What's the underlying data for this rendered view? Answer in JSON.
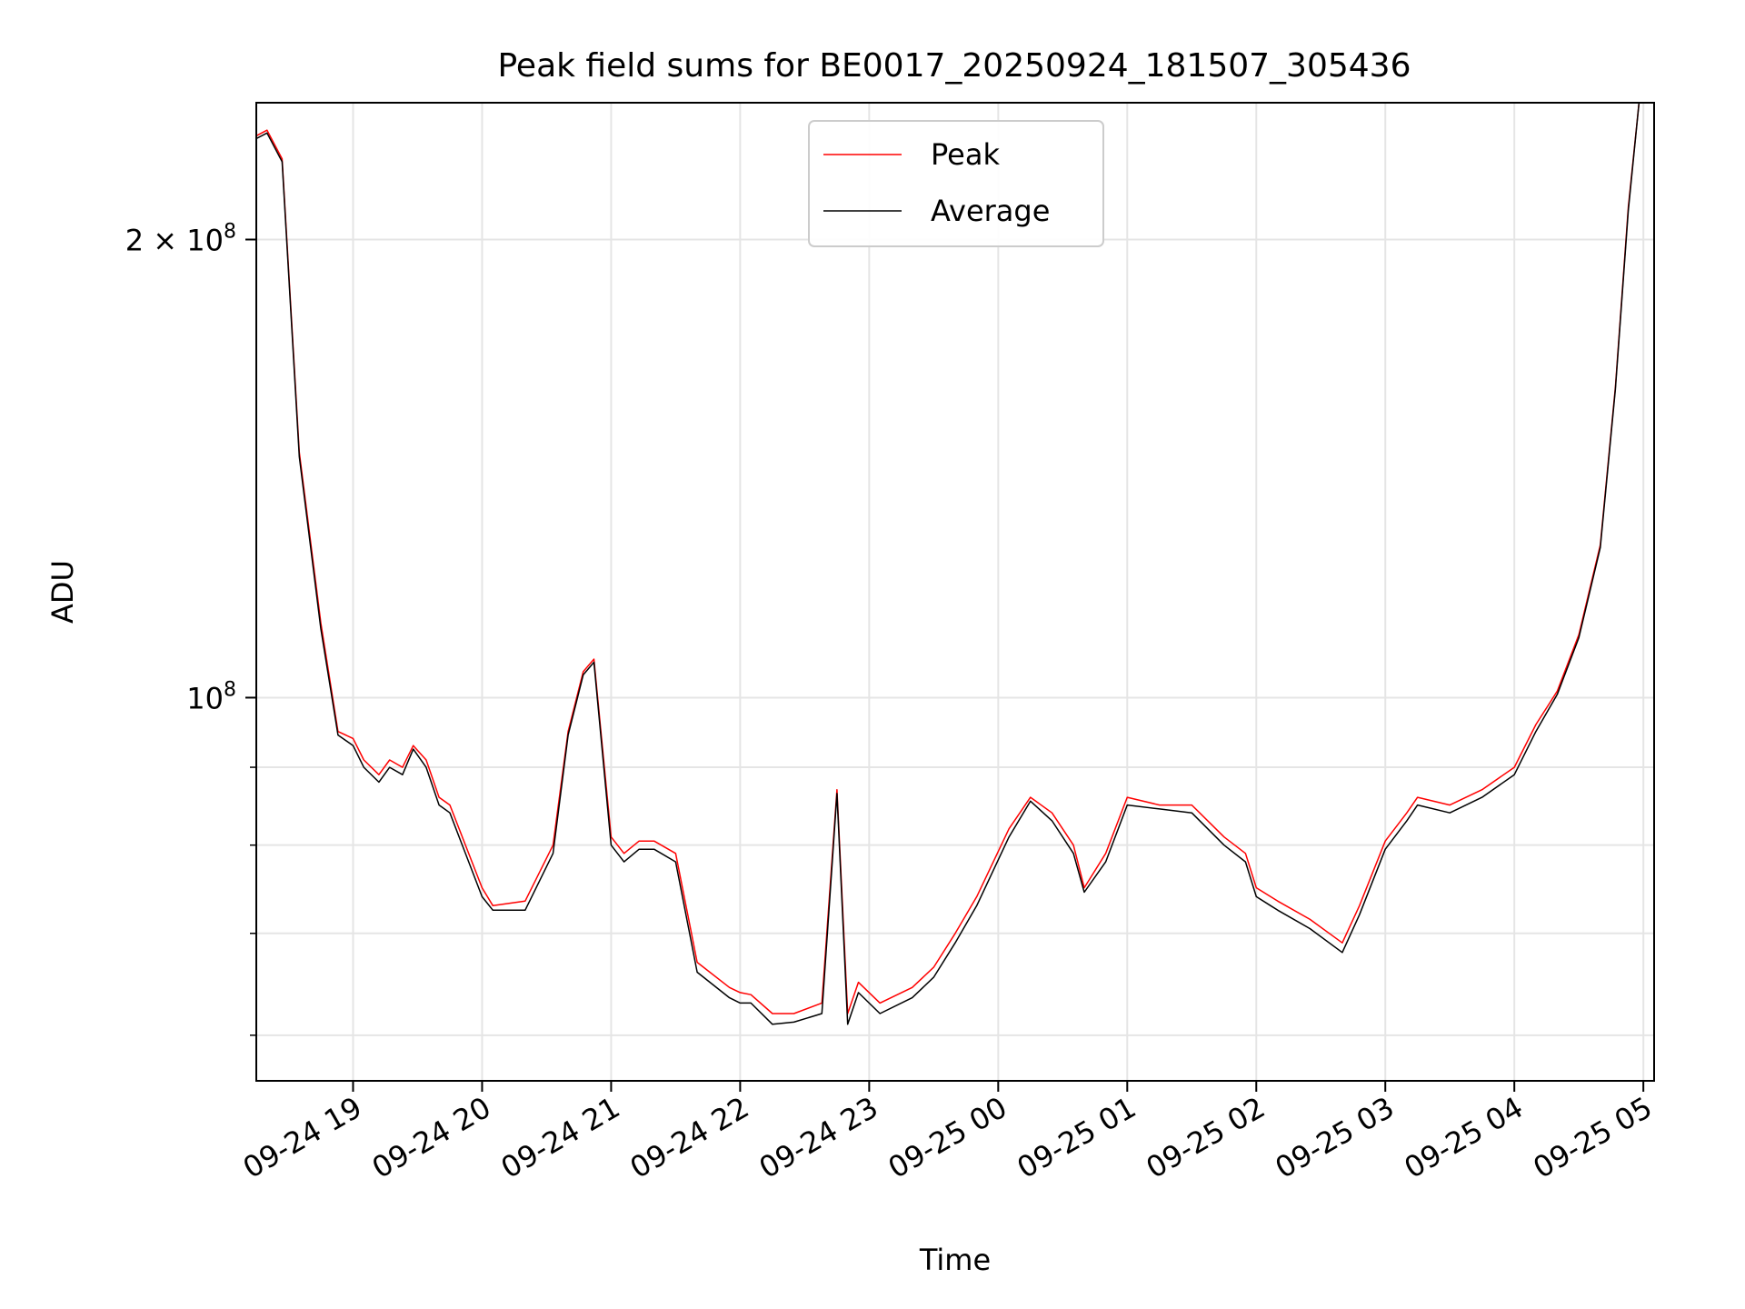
{
  "chart_data": {
    "type": "line",
    "title": "Peak field sums for BE0017_20250924_181507_305436",
    "xlabel": "Time",
    "ylabel": "ADU",
    "yscale": "log",
    "grid": true,
    "legend_position": "top-center",
    "xlim": [
      "2025-09-24 18:15",
      "2025-09-25 05:05"
    ],
    "ylim": [
      56000000,
      246000000
    ],
    "x_ticks": [
      "09-24 19",
      "09-24 20",
      "09-24 21",
      "09-24 22",
      "09-24 23",
      "09-25 00",
      "09-25 01",
      "09-25 02",
      "09-25 03",
      "09-25 04",
      "09-25 05"
    ],
    "y_ticks": [
      {
        "value": 100000000,
        "base": "10",
        "exp": "8"
      },
      {
        "value": 200000000,
        "base": "2 × 10",
        "exp": "8"
      }
    ],
    "y_minor_ticks": [
      60000000,
      70000000,
      80000000,
      90000000
    ],
    "series": [
      {
        "name": "Peak",
        "color": "#ff0000",
        "x": [
          "2025-09-24 18:15",
          "2025-09-24 18:20",
          "2025-09-24 18:27",
          "2025-09-24 18:35",
          "2025-09-24 18:45",
          "2025-09-24 18:53",
          "2025-09-24 19:00",
          "2025-09-24 19:05",
          "2025-09-24 19:12",
          "2025-09-24 19:17",
          "2025-09-24 19:23",
          "2025-09-24 19:28",
          "2025-09-24 19:34",
          "2025-09-24 19:40",
          "2025-09-24 19:45",
          "2025-09-24 20:00",
          "2025-09-24 20:05",
          "2025-09-24 20:20",
          "2025-09-24 20:33",
          "2025-09-24 20:40",
          "2025-09-24 20:47",
          "2025-09-24 20:52",
          "2025-09-24 21:00",
          "2025-09-24 21:06",
          "2025-09-24 21:13",
          "2025-09-24 21:20",
          "2025-09-24 21:30",
          "2025-09-24 21:40",
          "2025-09-24 21:55",
          "2025-09-24 22:00",
          "2025-09-24 22:05",
          "2025-09-24 22:15",
          "2025-09-24 22:25",
          "2025-09-24 22:38",
          "2025-09-24 22:45",
          "2025-09-24 22:50",
          "2025-09-24 22:55",
          "2025-09-24 23:05",
          "2025-09-24 23:20",
          "2025-09-24 23:30",
          "2025-09-24 23:40",
          "2025-09-24 23:50",
          "2025-09-25 00:05",
          "2025-09-25 00:15",
          "2025-09-25 00:25",
          "2025-09-25 00:35",
          "2025-09-25 00:40",
          "2025-09-25 00:50",
          "2025-09-25 01:00",
          "2025-09-25 01:15",
          "2025-09-25 01:30",
          "2025-09-25 01:45",
          "2025-09-25 01:55",
          "2025-09-25 02:00",
          "2025-09-25 02:10",
          "2025-09-25 02:25",
          "2025-09-25 02:40",
          "2025-09-25 02:48",
          "2025-09-25 03:00",
          "2025-09-25 03:10",
          "2025-09-25 03:15",
          "2025-09-25 03:30",
          "2025-09-25 03:45",
          "2025-09-25 04:00",
          "2025-09-25 04:10",
          "2025-09-25 04:20",
          "2025-09-25 04:30",
          "2025-09-25 04:40",
          "2025-09-25 04:47",
          "2025-09-25 04:53",
          "2025-09-25 04:58"
        ],
        "y": [
          234000000,
          236000000,
          226000000,
          145000000,
          112000000,
          95000000,
          94000000,
          91000000,
          89000000,
          91000000,
          90000000,
          93000000,
          91000000,
          86000000,
          85000000,
          75000000,
          73000000,
          73500000,
          80000000,
          95000000,
          104000000,
          106000000,
          81000000,
          79000000,
          80500000,
          80500000,
          79000000,
          67000000,
          64500000,
          64000000,
          63800000,
          62000000,
          62000000,
          63000000,
          87000000,
          62000000,
          65000000,
          63000000,
          64500000,
          66500000,
          70000000,
          74000000,
          82000000,
          86000000,
          84000000,
          80000000,
          75000000,
          79000000,
          86000000,
          85000000,
          85000000,
          81000000,
          79000000,
          75000000,
          73500000,
          71500000,
          69000000,
          73000000,
          80500000,
          84000000,
          86000000,
          85000000,
          87000000,
          90000000,
          96000000,
          101000000,
          110000000,
          126000000,
          160000000,
          210000000,
          246000000
        ]
      },
      {
        "name": "Average",
        "color": "#000000",
        "x": [
          "2025-09-24 18:15",
          "2025-09-24 18:20",
          "2025-09-24 18:27",
          "2025-09-24 18:35",
          "2025-09-24 18:45",
          "2025-09-24 18:53",
          "2025-09-24 19:00",
          "2025-09-24 19:05",
          "2025-09-24 19:12",
          "2025-09-24 19:17",
          "2025-09-24 19:23",
          "2025-09-24 19:28",
          "2025-09-24 19:34",
          "2025-09-24 19:40",
          "2025-09-24 19:45",
          "2025-09-24 20:00",
          "2025-09-24 20:05",
          "2025-09-24 20:20",
          "2025-09-24 20:33",
          "2025-09-24 20:40",
          "2025-09-24 20:47",
          "2025-09-24 20:52",
          "2025-09-24 21:00",
          "2025-09-24 21:06",
          "2025-09-24 21:13",
          "2025-09-24 21:20",
          "2025-09-24 21:30",
          "2025-09-24 21:40",
          "2025-09-24 21:55",
          "2025-09-24 22:00",
          "2025-09-24 22:05",
          "2025-09-24 22:15",
          "2025-09-24 22:25",
          "2025-09-24 22:38",
          "2025-09-24 22:45",
          "2025-09-24 22:50",
          "2025-09-24 22:55",
          "2025-09-24 23:05",
          "2025-09-24 23:20",
          "2025-09-24 23:30",
          "2025-09-24 23:40",
          "2025-09-24 23:50",
          "2025-09-25 00:05",
          "2025-09-25 00:15",
          "2025-09-25 00:25",
          "2025-09-25 00:35",
          "2025-09-25 00:40",
          "2025-09-25 00:50",
          "2025-09-25 01:00",
          "2025-09-25 01:15",
          "2025-09-25 01:30",
          "2025-09-25 01:45",
          "2025-09-25 01:55",
          "2025-09-25 02:00",
          "2025-09-25 02:10",
          "2025-09-25 02:25",
          "2025-09-25 02:40",
          "2025-09-25 02:48",
          "2025-09-25 03:00",
          "2025-09-25 03:10",
          "2025-09-25 03:15",
          "2025-09-25 03:30",
          "2025-09-25 03:45",
          "2025-09-25 04:00",
          "2025-09-25 04:10",
          "2025-09-25 04:20",
          "2025-09-25 04:30",
          "2025-09-25 04:40",
          "2025-09-25 04:47",
          "2025-09-25 04:53",
          "2025-09-25 04:58"
        ],
        "y": [
          233000000,
          235000000,
          225000000,
          144000000,
          111000000,
          94500000,
          93000000,
          90000000,
          88000000,
          90000000,
          89000000,
          92500000,
          90000000,
          85000000,
          84000000,
          74000000,
          72500000,
          72500000,
          79000000,
          94500000,
          103500000,
          105500000,
          80000000,
          78000000,
          79500000,
          79500000,
          78000000,
          66000000,
          63500000,
          63000000,
          63000000,
          61000000,
          61200000,
          62000000,
          86500000,
          61000000,
          64000000,
          62000000,
          63500000,
          65500000,
          69000000,
          73000000,
          81000000,
          85500000,
          83000000,
          79000000,
          74500000,
          78000000,
          85000000,
          84500000,
          84000000,
          80000000,
          78000000,
          74000000,
          72500000,
          70500000,
          68000000,
          72000000,
          79500000,
          83000000,
          85000000,
          84000000,
          86000000,
          89000000,
          95000000,
          100500000,
          109500000,
          125500000,
          159500000,
          209000000,
          246000000
        ]
      }
    ]
  }
}
